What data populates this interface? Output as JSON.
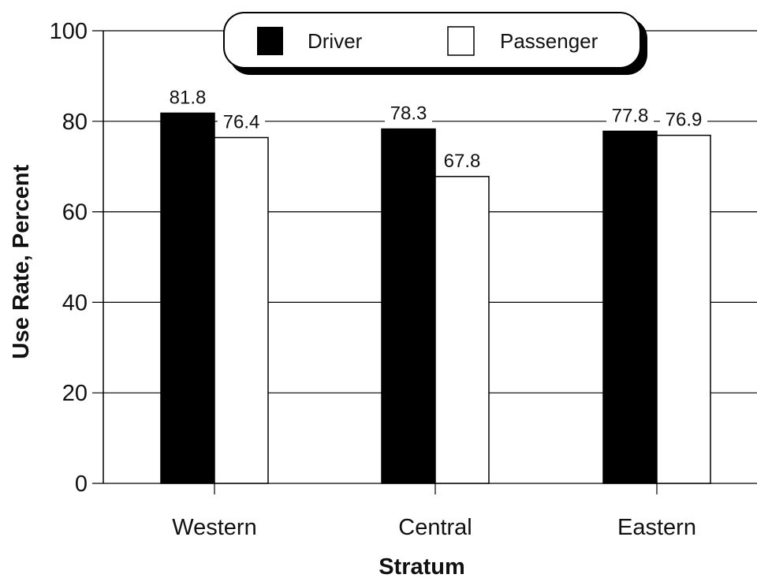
{
  "chart_data": {
    "type": "bar",
    "xlabel": "Stratum",
    "ylabel": "Use Rate, Percent",
    "ylim": [
      0,
      100
    ],
    "yticks": [
      0,
      20,
      40,
      60,
      80,
      100
    ],
    "categories": [
      "Western",
      "Central",
      "Eastern"
    ],
    "series": [
      {
        "name": "Driver",
        "values": [
          81.8,
          78.3,
          77.8
        ],
        "color": "#000000"
      },
      {
        "name": "Passenger",
        "values": [
          76.4,
          67.8,
          76.9
        ],
        "color": "#ffffff"
      }
    ],
    "value_labels": [
      [
        "81.8",
        "78.3",
        "77.8"
      ],
      [
        "76.4",
        "67.8",
        "76.9"
      ]
    ],
    "grid": true,
    "legend_position": "top-center"
  }
}
